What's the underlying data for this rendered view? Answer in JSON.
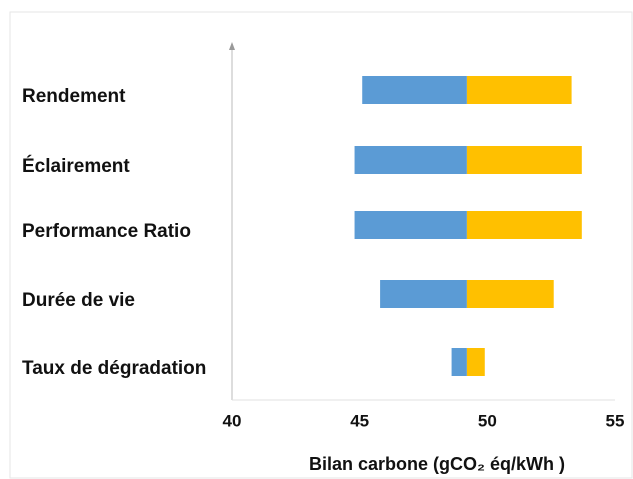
{
  "chart_data": {
    "type": "tornado",
    "categories": [
      "Rendement",
      "Éclairement",
      "Performance Ratio",
      "Durée de vie",
      "Taux de dégradation"
    ],
    "base": 49.2,
    "low": [
      45.1,
      44.8,
      44.8,
      45.8,
      48.6
    ],
    "high": [
      53.3,
      53.7,
      53.7,
      52.6,
      49.9
    ],
    "low_color": "#5b9bd5",
    "high_color": "#ffc000",
    "xlim": [
      40,
      55
    ],
    "xticks": [
      40,
      45,
      50,
      55
    ],
    "x_label": "Bilan carbone (gCO₂ éq/kWh )"
  }
}
